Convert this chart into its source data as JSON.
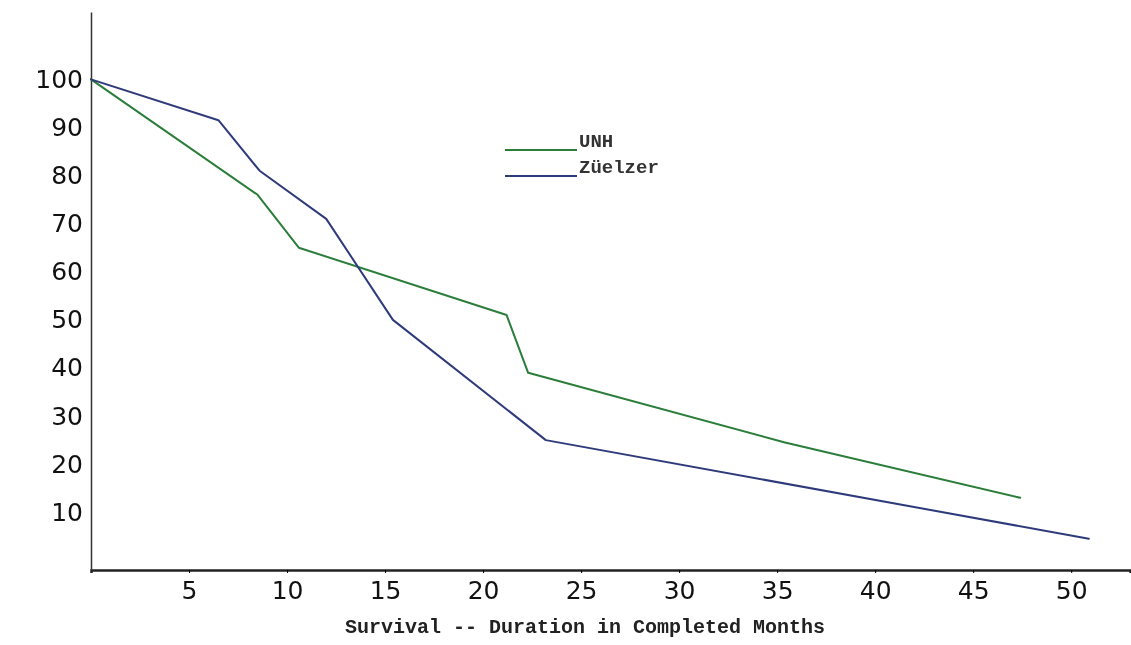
{
  "chart_data": {
    "type": "line",
    "xlabel": "Survival -- Duration in Completed Months",
    "xlim": [
      0,
      53
    ],
    "ylim": [
      -2,
      114
    ],
    "xticks": [
      5,
      10,
      15,
      20,
      25,
      30,
      35,
      40,
      45,
      50
    ],
    "yticks": [
      10,
      20,
      30,
      40,
      50,
      60,
      70,
      80,
      90,
      100
    ],
    "legend": "top",
    "grid": false,
    "series": [
      {
        "name": "UNH",
        "color": "#2b7d3a",
        "x": [
          0,
          8.5,
          10.6,
          21.2,
          22.3,
          35.4,
          47.4
        ],
        "values": [
          100,
          76,
          65,
          51,
          39,
          24.5,
          13
        ]
      },
      {
        "name": "Züelzer",
        "color": "#2f3a7a",
        "x": [
          0,
          6.5,
          8.6,
          12,
          15.4,
          23.2,
          50.9
        ],
        "values": [
          100,
          91.5,
          81,
          71,
          50,
          25,
          4.5
        ]
      }
    ]
  }
}
